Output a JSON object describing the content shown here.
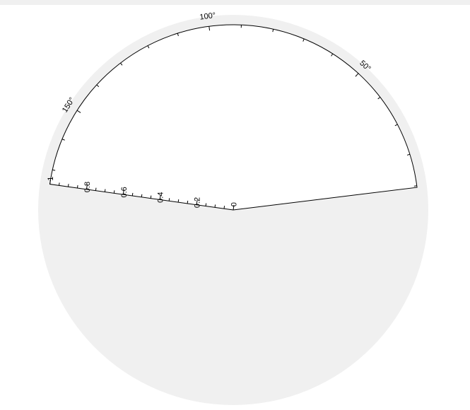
{
  "chart_data": {
    "type": "polar",
    "title": "",
    "theta_range_deg": [
      9.5,
      174.5
    ],
    "r_range": [
      0,
      1
    ],
    "theta_major_ticks": [
      50,
      100,
      150
    ],
    "theta_tick_labels": [
      "50°",
      "100°",
      "150°"
    ],
    "theta_minor_step_deg": 10,
    "r_major_ticks": [
      0,
      0.2,
      0.4,
      0.6,
      0.8,
      1
    ],
    "r_tick_labels": [
      "0",
      "0.2",
      "0.4",
      "0.6",
      "0.8",
      "1"
    ],
    "r_minor_step": 0.05,
    "series": [],
    "grid": false
  },
  "colors": {
    "background_band": "#f0f0f0",
    "plot_area": "#ffffff",
    "axis": "#000000"
  }
}
